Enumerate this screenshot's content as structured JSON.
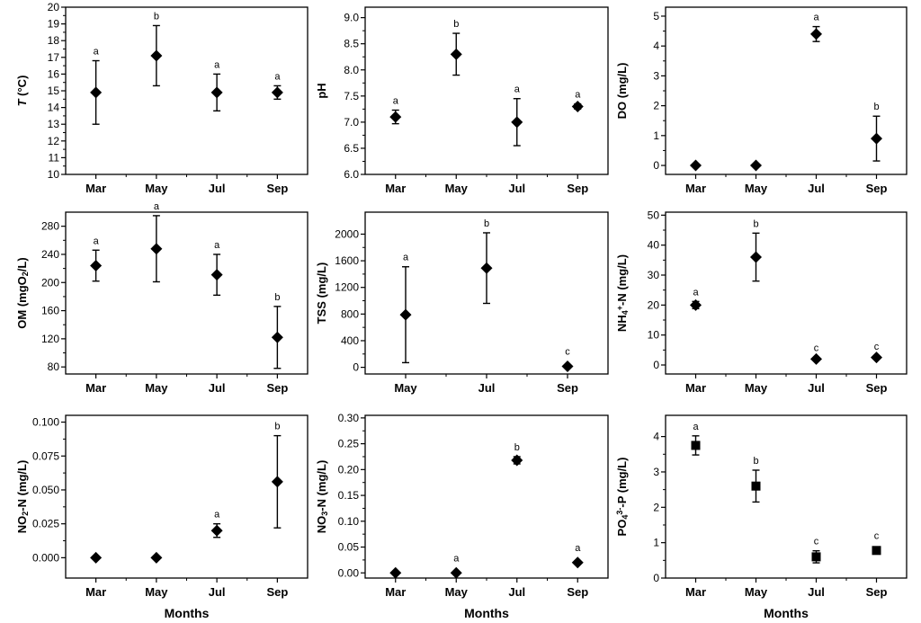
{
  "figure": {
    "xlabel": "Months"
  },
  "chart_data": [
    {
      "type": "scatter",
      "marker": "diamond",
      "categories": [
        "Mar",
        "May",
        "Jul",
        "Sep"
      ],
      "ylabel": "T (°C)",
      "ylabel_parts": [
        "T",
        " (°C)"
      ],
      "ylim": [
        10,
        20
      ],
      "yticks": [
        10,
        11,
        12,
        13,
        14,
        15,
        16,
        17,
        18,
        19,
        20
      ],
      "tick_labels": [
        "10",
        "11",
        "12",
        "13",
        "14",
        "15",
        "16",
        "17",
        "18",
        "19",
        "20"
      ],
      "values": [
        14.9,
        17.1,
        14.9,
        14.9
      ],
      "errors": [
        1.9,
        1.8,
        1.1,
        0.4
      ],
      "letters": [
        "a",
        "b",
        "a",
        "a"
      ],
      "xlabel": ""
    },
    {
      "type": "scatter",
      "marker": "diamond",
      "categories": [
        "Mar",
        "May",
        "Jul",
        "Sep"
      ],
      "ylabel": "pH",
      "ylabel_parts": [
        "pH"
      ],
      "ylim": [
        6.0,
        9.2
      ],
      "yticks": [
        6.0,
        6.5,
        7.0,
        7.5,
        8.0,
        8.5,
        9.0
      ],
      "tick_labels": [
        "6.0",
        "6.5",
        "7.0",
        "7.5",
        "8.0",
        "8.5",
        "9.0"
      ],
      "values": [
        7.1,
        8.3,
        7.0,
        7.3
      ],
      "errors": [
        0.13,
        0.4,
        0.45,
        0.05
      ],
      "letters": [
        "a",
        "b",
        "a",
        "a"
      ],
      "xlabel": ""
    },
    {
      "type": "scatter",
      "marker": "diamond",
      "categories": [
        "Mar",
        "May",
        "Jul",
        "Sep"
      ],
      "ylabel": "DO (mg/L)",
      "ylabel_parts": [
        "DO (mg/L)"
      ],
      "ylim": [
        -0.3,
        5.3
      ],
      "yticks": [
        0,
        1,
        2,
        3,
        4,
        5
      ],
      "tick_labels": [
        "0",
        "1",
        "2",
        "3",
        "4",
        "5"
      ],
      "values": [
        0.0,
        0.0,
        4.4,
        0.9
      ],
      "errors": [
        0,
        0,
        0.25,
        0.75
      ],
      "letters": [
        "",
        "",
        "a",
        "b"
      ],
      "xlabel": ""
    },
    {
      "type": "scatter",
      "marker": "diamond",
      "categories": [
        "Mar",
        "May",
        "Jul",
        "Sep"
      ],
      "ylabel": "OM (mgO2/L)",
      "ylabel_parts": [
        "OM (mgO",
        "2",
        "/L)"
      ],
      "ylim": [
        70,
        300
      ],
      "yticks": [
        80,
        120,
        160,
        200,
        240,
        280
      ],
      "tick_labels": [
        "80",
        "120",
        "160",
        "200",
        "240",
        "280"
      ],
      "values": [
        224,
        248,
        211,
        122
      ],
      "errors": [
        22,
        47,
        29,
        44
      ],
      "letters": [
        "a",
        "a",
        "a",
        "b"
      ],
      "xlabel": ""
    },
    {
      "type": "scatter",
      "marker": "diamond",
      "categories": [
        "May",
        "Jul",
        "Sep"
      ],
      "ylabel": "TSS (mg/L)",
      "ylabel_parts": [
        "TSS (mg/L)"
      ],
      "ylim": [
        -100,
        2330
      ],
      "yticks": [
        0,
        400,
        800,
        1200,
        1600,
        2000
      ],
      "tick_labels": [
        "0",
        "400",
        "800",
        "1200",
        "1600",
        "2000"
      ],
      "values": [
        790,
        1490,
        15
      ],
      "errors": [
        720,
        530,
        0
      ],
      "letters": [
        "a",
        "b",
        "c"
      ],
      "xlabel": ""
    },
    {
      "type": "scatter",
      "marker": "diamond",
      "categories": [
        "Mar",
        "May",
        "Jul",
        "Sep"
      ],
      "ylabel": "NH4+-N (mg/L)",
      "ylabel_parts": [
        "NH",
        "4",
        "+",
        "-N (mg/L)"
      ],
      "ylim": [
        -3,
        51
      ],
      "yticks": [
        0,
        10,
        20,
        30,
        40,
        50
      ],
      "tick_labels": [
        "0",
        "10",
        "20",
        "30",
        "40",
        "50"
      ],
      "values": [
        20,
        36,
        2,
        2.5
      ],
      "errors": [
        1.2,
        8,
        0.5,
        0.5
      ],
      "letters": [
        "a",
        "b",
        "c",
        "c"
      ],
      "xlabel": ""
    },
    {
      "type": "scatter",
      "marker": "diamond",
      "categories": [
        "Mar",
        "May",
        "Jul",
        "Sep"
      ],
      "ylabel": "NO2-N (mg/L)",
      "ylabel_parts": [
        "NO",
        "2",
        "-N (mg/L)"
      ],
      "ylim": [
        -0.015,
        0.105
      ],
      "yticks": [
        0.0,
        0.025,
        0.05,
        0.075,
        0.1
      ],
      "tick_labels": [
        "0.000",
        "0.025",
        "0.050",
        "0.075",
        "0.100"
      ],
      "values": [
        0.0,
        0.0,
        0.02,
        0.056
      ],
      "errors": [
        0,
        0,
        0.005,
        0.034
      ],
      "letters": [
        "",
        "",
        "a",
        "b"
      ],
      "xlabel": "Months"
    },
    {
      "type": "scatter",
      "marker": "diamond",
      "categories": [
        "Mar",
        "May",
        "Jul",
        "Sep"
      ],
      "ylabel": "NO3-N (mg/L)",
      "ylabel_parts": [
        "NO",
        "3",
        "-N (mg/L)"
      ],
      "ylim": [
        -0.01,
        0.305
      ],
      "yticks": [
        0.0,
        0.05,
        0.1,
        0.15,
        0.2,
        0.25,
        0.3
      ],
      "tick_labels": [
        "0.00",
        "0.05",
        "0.10",
        "0.15",
        "0.20",
        "0.25",
        "0.30"
      ],
      "values": [
        0.0,
        0.0,
        0.218,
        0.02
      ],
      "errors": [
        0,
        0,
        0.007,
        0
      ],
      "letters": [
        "",
        "a",
        "b",
        "a"
      ],
      "xlabel": "Months"
    },
    {
      "type": "scatter",
      "marker": "square",
      "categories": [
        "Mar",
        "May",
        "Jul",
        "Sep"
      ],
      "ylabel": "PO43--P (mg/L)",
      "ylabel_parts": [
        "PO",
        "4",
        "3-",
        "-P (mg/L)"
      ],
      "ylim": [
        0,
        4.6
      ],
      "yticks": [
        0,
        1,
        2,
        3,
        4
      ],
      "tick_labels": [
        "0",
        "1",
        "2",
        "3",
        "4"
      ],
      "values": [
        3.75,
        2.6,
        0.6,
        0.78
      ],
      "errors": [
        0.27,
        0.45,
        0.17,
        0
      ],
      "letters": [
        "a",
        "b",
        "c",
        "c"
      ],
      "xlabel": "Months"
    }
  ]
}
